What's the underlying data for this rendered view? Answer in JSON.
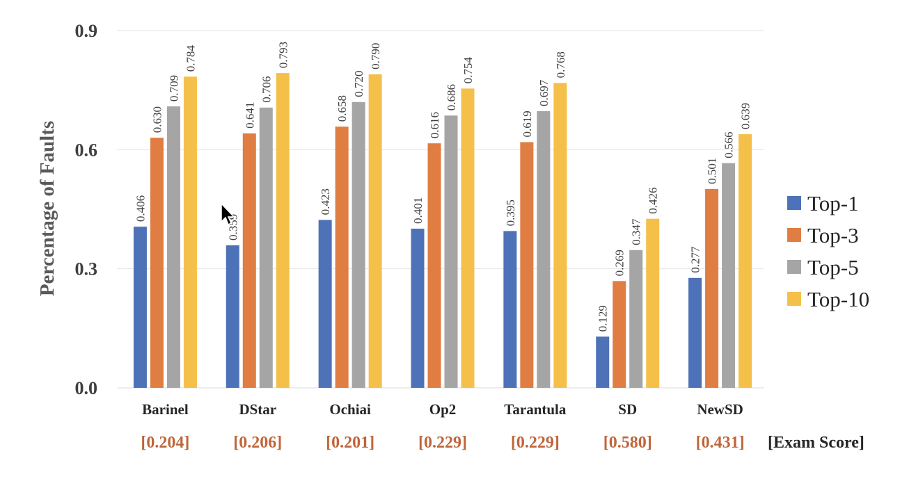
{
  "chart_data": {
    "type": "bar",
    "title": "",
    "ylabel": "Percentage of Faults",
    "xlabel": "",
    "ylim": [
      0,
      0.9
    ],
    "yticks": [
      "0.0",
      "0.3",
      "0.6",
      "0.9"
    ],
    "grid": true,
    "legend_position": "right",
    "categories": [
      "Barinel",
      "DStar",
      "Ochiai",
      "Op2",
      "Tarantula",
      "SD",
      "NewSD"
    ],
    "series": [
      {
        "name": "Top-1",
        "color": "#4e72b8",
        "values": [
          0.406,
          0.359,
          0.423,
          0.401,
          0.395,
          0.129,
          0.277
        ],
        "labels": [
          "0.406",
          "0.359",
          "0.423",
          "0.401",
          "0.395",
          "0.129",
          "0.277"
        ]
      },
      {
        "name": "Top-3",
        "color": "#df7d42",
        "values": [
          0.63,
          0.641,
          0.658,
          0.616,
          0.619,
          0.269,
          0.501
        ],
        "labels": [
          "0.630",
          "0.641",
          "0.658",
          "0.616",
          "0.619",
          "0.269",
          "0.501"
        ]
      },
      {
        "name": "Top-5",
        "color": "#a5a5a5",
        "values": [
          0.709,
          0.706,
          0.72,
          0.686,
          0.697,
          0.347,
          0.566
        ],
        "labels": [
          "0.709",
          "0.706",
          "0.720",
          "0.686",
          "0.697",
          "0.347",
          "0.566"
        ]
      },
      {
        "name": "Top-10",
        "color": "#f5c04a",
        "values": [
          0.784,
          0.793,
          0.79,
          0.754,
          0.768,
          0.426,
          0.639
        ],
        "labels": [
          "0.784",
          "0.793",
          "0.790",
          "0.754",
          "0.768",
          "0.426",
          "0.639"
        ]
      }
    ],
    "annotations": {
      "exam_scores": [
        "[0.204]",
        "[0.206]",
        "[0.201]",
        "[0.229]",
        "[0.229]",
        "[0.580]",
        "[0.431]"
      ],
      "exam_score_label": "[Exam Score]",
      "exam_score_color": "#c0653a"
    }
  }
}
